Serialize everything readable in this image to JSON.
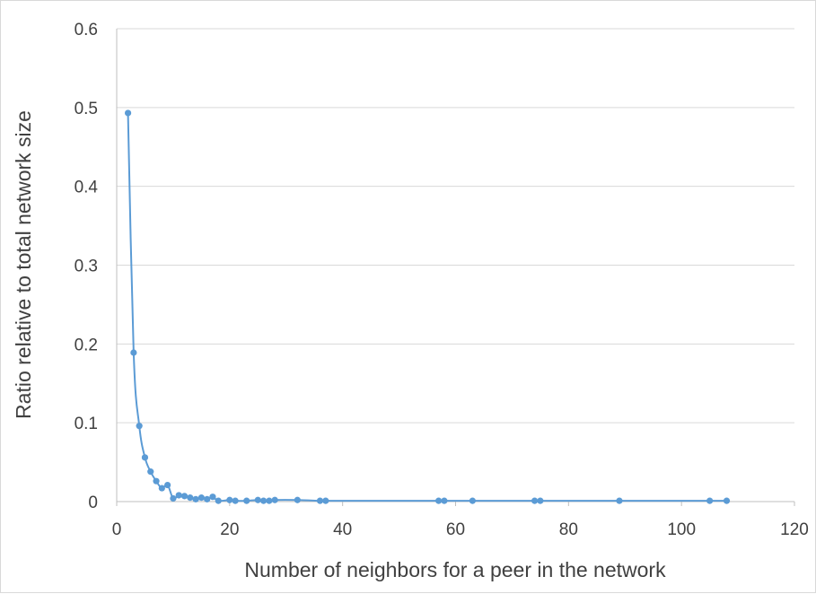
{
  "chart_data": {
    "type": "scatter",
    "title": "",
    "xlabel": "Number of neighbors for a peer in the network",
    "ylabel": "Ratio relative to total network size",
    "xlim": [
      0,
      120
    ],
    "ylim": [
      0,
      0.6
    ],
    "x_ticks": [
      "0",
      "20",
      "40",
      "60",
      "80",
      "100",
      "120"
    ],
    "y_ticks": [
      "0",
      "0.1",
      "0.2",
      "0.3",
      "0.4",
      "0.5",
      "0.6"
    ],
    "grid": "horizontal",
    "legend": "none",
    "marker_style": "circle markers joined by smooth line",
    "series_color": "#5b9bd5",
    "grid_color": "#d9d9d9",
    "series": [
      {
        "x": [
          2,
          3,
          4,
          5,
          6,
          7,
          8,
          9,
          10,
          11,
          12,
          13,
          14,
          15,
          16,
          17,
          18,
          20,
          21,
          23,
          25,
          26,
          27,
          28,
          32,
          36,
          37,
          57,
          58,
          63,
          74,
          75,
          89,
          105,
          108
        ],
        "y": [
          0.493,
          0.189,
          0.096,
          0.056,
          0.038,
          0.026,
          0.017,
          0.021,
          0.004,
          0.008,
          0.007,
          0.005,
          0.003,
          0.005,
          0.003,
          0.006,
          0.001,
          0.002,
          0.001,
          0.001,
          0.002,
          0.001,
          0.001,
          0.002,
          0.002,
          0.001,
          0.001,
          0.001,
          0.001,
          0.001,
          0.001,
          0.001,
          0.001,
          0.001,
          0.001
        ]
      }
    ]
  }
}
